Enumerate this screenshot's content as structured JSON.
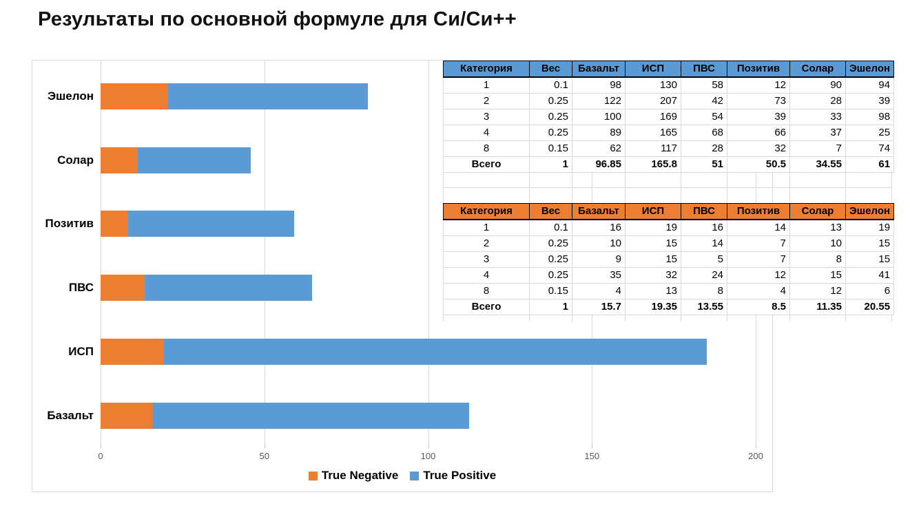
{
  "title": "Результаты по основной формуле для Си/Си++",
  "chart_data": {
    "type": "bar",
    "orientation": "horizontal",
    "stacked": true,
    "categories": [
      "Эшелон",
      "Солар",
      "Позитив",
      "ПВС",
      "ИСП",
      "Базальт"
    ],
    "series": [
      {
        "name": "True Negative",
        "color": "#ED7D31",
        "values": [
          20.55,
          11.35,
          8.5,
          13.55,
          19.35,
          15.7
        ]
      },
      {
        "name": "True Positive",
        "color": "#5B9BD5",
        "values": [
          61,
          34.55,
          50.5,
          51,
          165.8,
          96.85
        ]
      }
    ],
    "x_ticks": [
      0,
      50,
      100,
      150,
      200
    ],
    "xlim": [
      0,
      205
    ],
    "grid": true,
    "legend_position": "bottom"
  },
  "tables": [
    {
      "name": "true-positive-table",
      "header_color": "#5B9BD5",
      "columns": [
        "Категория",
        "Вес",
        "Базальт",
        "ИСП",
        "ПВС",
        "Позитив",
        "Солар",
        "Эшелон"
      ],
      "rows": [
        [
          "1",
          "0.1",
          "98",
          "130",
          "58",
          "12",
          "90",
          "94"
        ],
        [
          "2",
          "0.25",
          "122",
          "207",
          "42",
          "73",
          "28",
          "39"
        ],
        [
          "3",
          "0.25",
          "100",
          "169",
          "54",
          "39",
          "33",
          "98"
        ],
        [
          "4",
          "0.25",
          "89",
          "165",
          "68",
          "66",
          "37",
          "25"
        ],
        [
          "8",
          "0.15",
          "62",
          "117",
          "28",
          "32",
          "7",
          "74"
        ]
      ],
      "total_row": [
        "Всего",
        "1",
        "96.85",
        "165.8",
        "51",
        "50.5",
        "34.55",
        "61"
      ]
    },
    {
      "name": "true-negative-table",
      "header_color": "#ED7D31",
      "columns": [
        "Категория",
        "Вес",
        "Базальт",
        "ИСП",
        "ПВС",
        "Позитив",
        "Солар",
        "Эшелон"
      ],
      "rows": [
        [
          "1",
          "0.1",
          "16",
          "19",
          "16",
          "14",
          "13",
          "19"
        ],
        [
          "2",
          "0.25",
          "10",
          "15",
          "14",
          "7",
          "10",
          "15"
        ],
        [
          "3",
          "0.25",
          "9",
          "15",
          "5",
          "7",
          "8",
          "15"
        ],
        [
          "4",
          "0.25",
          "35",
          "32",
          "24",
          "12",
          "15",
          "41"
        ],
        [
          "8",
          "0.15",
          "4",
          "13",
          "8",
          "4",
          "12",
          "6"
        ]
      ],
      "total_row": [
        "Всего",
        "1",
        "15.7",
        "19.35",
        "13.55",
        "8.5",
        "11.35",
        "20.55"
      ]
    }
  ]
}
